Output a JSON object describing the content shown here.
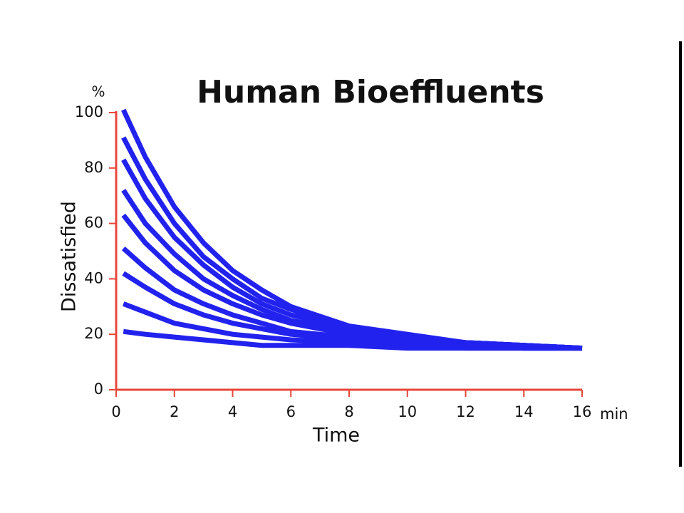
{
  "chart_data": {
    "type": "line",
    "title": "Human Bioeffluents",
    "y_label": "Dissatisfied",
    "y_unit": "%",
    "x_label": "Time",
    "x_unit": "min",
    "x": [
      0.25,
      1,
      2,
      3,
      4,
      5,
      6,
      8,
      10,
      12,
      14,
      16
    ],
    "series": [
      {
        "color": "#2222ee",
        "values": [
          101,
          84,
          66,
          53,
          43,
          36,
          30,
          23,
          20,
          17,
          16,
          15
        ]
      },
      {
        "color": "#2222ee",
        "values": [
          91,
          76,
          60,
          48,
          40,
          33,
          29,
          22,
          19,
          17,
          16,
          15
        ]
      },
      {
        "color": "#2222ee",
        "values": [
          83,
          69,
          55,
          45,
          37,
          31,
          27,
          22,
          19,
          17,
          16,
          15
        ]
      },
      {
        "color": "#2222ee",
        "values": [
          72,
          60,
          49,
          40,
          34,
          29,
          25,
          21,
          18,
          17,
          16,
          15
        ]
      },
      {
        "color": "#2222ee",
        "values": [
          63,
          53,
          43,
          36,
          31,
          27,
          24,
          20,
          18,
          16,
          16,
          15
        ]
      },
      {
        "color": "#2222ee",
        "values": [
          51,
          44,
          36,
          31,
          27,
          24,
          21,
          19,
          17,
          16,
          15,
          15
        ]
      },
      {
        "color": "#2222ee",
        "values": [
          42,
          37,
          31,
          27,
          24,
          22,
          20,
          18,
          16,
          16,
          15,
          15
        ]
      },
      {
        "color": "#2222ee",
        "values": [
          31,
          28,
          24,
          22,
          20,
          19,
          18,
          17,
          16,
          15,
          15,
          15
        ]
      },
      {
        "color": "#2222ee",
        "values": [
          21,
          20,
          19,
          18,
          17,
          16,
          16,
          16,
          15,
          15,
          15,
          15
        ]
      }
    ],
    "xlim": [
      0,
      16
    ],
    "xticks": [
      0,
      2,
      4,
      6,
      8,
      10,
      12,
      14,
      16
    ],
    "ylim": [
      0,
      100
    ],
    "yticks": [
      0,
      20,
      40,
      60,
      80,
      100
    ],
    "axis_color": "#e8463a"
  }
}
